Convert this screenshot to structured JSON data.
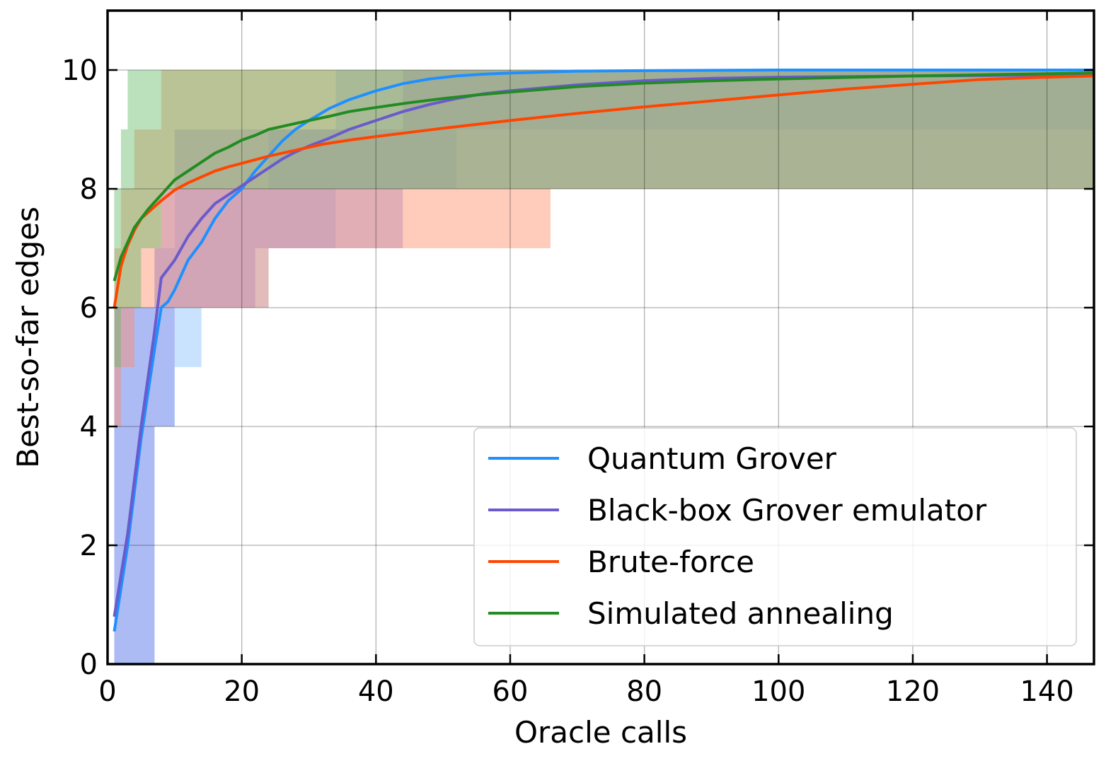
{
  "chart_data": {
    "type": "line",
    "title": "",
    "xlabel": "Oracle calls",
    "ylabel": "Best-so-far edges",
    "xlim": [
      0,
      147
    ],
    "ylim": [
      0,
      11
    ],
    "xticks": [
      0,
      20,
      40,
      60,
      80,
      100,
      120,
      140
    ],
    "yticks": [
      0,
      2,
      4,
      6,
      8,
      10
    ],
    "grid": true,
    "legend_position": "lower-right",
    "series": [
      {
        "name": "Quantum Grover",
        "color": "#1e90ff",
        "band_color": "#87c1ff",
        "x": [
          1,
          3,
          5,
          7,
          8,
          9,
          10,
          12,
          14,
          16,
          18,
          20,
          22,
          24,
          26,
          28,
          30,
          33,
          36,
          40,
          44,
          48,
          52,
          56,
          60,
          70,
          80,
          100,
          120,
          147
        ],
        "y": [
          0.55,
          2.0,
          3.8,
          5.3,
          6.0,
          6.1,
          6.3,
          6.8,
          7.1,
          7.5,
          7.8,
          8.0,
          8.3,
          8.55,
          8.8,
          9.0,
          9.15,
          9.35,
          9.5,
          9.65,
          9.77,
          9.85,
          9.9,
          9.93,
          9.95,
          9.98,
          9.99,
          10.0,
          10.0,
          10.0
        ],
        "band_x": [
          1,
          7,
          10,
          14,
          16,
          18,
          24,
          28,
          34,
          48,
          52,
          147
        ],
        "band_lower": [
          0,
          4,
          5,
          6,
          6,
          6,
          7,
          7,
          8,
          8,
          9,
          9
        ],
        "band_upper": [
          6,
          7,
          8,
          8,
          8,
          8,
          9,
          9,
          10,
          10,
          10,
          10
        ]
      },
      {
        "name": "Black-box Grover emulator",
        "color": "#6a5acd",
        "band_color": "#8a8ae6",
        "x": [
          1,
          3,
          5,
          7,
          8,
          9,
          10,
          12,
          14,
          16,
          18,
          20,
          22,
          24,
          26,
          28,
          30,
          33,
          36,
          40,
          44,
          48,
          52,
          56,
          60,
          70,
          80,
          90,
          100,
          120,
          147
        ],
        "y": [
          0.8,
          2.2,
          4.0,
          5.6,
          6.5,
          6.65,
          6.8,
          7.2,
          7.5,
          7.75,
          7.9,
          8.05,
          8.2,
          8.35,
          8.5,
          8.62,
          8.72,
          8.85,
          9.0,
          9.15,
          9.3,
          9.42,
          9.52,
          9.6,
          9.65,
          9.75,
          9.82,
          9.86,
          9.88,
          9.9,
          9.92
        ],
        "band_x": [
          1,
          7,
          8,
          10,
          22,
          24,
          44,
          46,
          48,
          147
        ],
        "band_lower": [
          0,
          4,
          4,
          6,
          7,
          7,
          8,
          8,
          8,
          9
        ],
        "band_upper": [
          6,
          7,
          8,
          9,
          9,
          9,
          10,
          10,
          10,
          10
        ]
      },
      {
        "name": "Brute-force",
        "color": "#ff4500",
        "band_color": "#ff8c69",
        "x": [
          1,
          2,
          3,
          4,
          5,
          6,
          8,
          10,
          12,
          14,
          16,
          18,
          20,
          24,
          28,
          32,
          36,
          40,
          45,
          50,
          60,
          70,
          80,
          90,
          100,
          110,
          120,
          130,
          140,
          147
        ],
        "y": [
          6.0,
          6.7,
          7.05,
          7.3,
          7.5,
          7.6,
          7.8,
          7.98,
          8.1,
          8.2,
          8.3,
          8.37,
          8.43,
          8.55,
          8.65,
          8.75,
          8.82,
          8.88,
          8.95,
          9.02,
          9.15,
          9.27,
          9.38,
          9.48,
          9.58,
          9.68,
          9.76,
          9.84,
          9.88,
          9.9
        ],
        "band_x": [
          1,
          2,
          4,
          8,
          12,
          24,
          66,
          82,
          111,
          147
        ],
        "band_lower": [
          4,
          5,
          6,
          6,
          6,
          7,
          8,
          8,
          8,
          9
        ],
        "band_upper": [
          7,
          8,
          9,
          10,
          10,
          10,
          10,
          10,
          10,
          10
        ]
      },
      {
        "name": "Simulated annealing",
        "color": "#228b22",
        "band_color": "#66bb6a",
        "x": [
          1,
          2,
          3,
          4,
          5,
          6,
          8,
          10,
          12,
          14,
          16,
          18,
          20,
          22,
          24,
          26,
          28,
          30,
          33,
          36,
          40,
          45,
          50,
          55,
          60,
          70,
          80,
          90,
          100,
          120,
          147
        ],
        "y": [
          6.45,
          6.85,
          7.1,
          7.35,
          7.5,
          7.65,
          7.9,
          8.15,
          8.3,
          8.45,
          8.6,
          8.7,
          8.82,
          8.9,
          9.0,
          9.05,
          9.1,
          9.15,
          9.22,
          9.3,
          9.37,
          9.45,
          9.52,
          9.58,
          9.63,
          9.72,
          9.78,
          9.82,
          9.85,
          9.9,
          9.95
        ],
        "band_x": [
          1,
          2,
          3,
          5,
          6,
          8,
          10,
          147
        ],
        "band_lower": [
          5,
          6,
          6,
          7,
          7,
          8,
          8,
          9
        ],
        "band_upper": [
          8,
          9,
          10,
          10,
          10,
          10,
          10,
          10
        ]
      }
    ]
  }
}
